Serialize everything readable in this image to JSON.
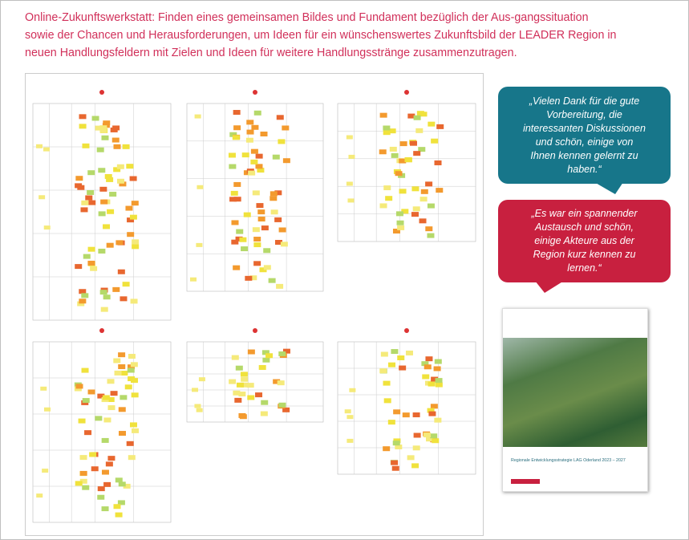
{
  "header": {
    "title_lines": [
      "Online-Zukunftswerkstatt: Finden eines gemeinsamen Bildes und Fundament bezüglich der Aus-gangssituation",
      "sowie der Chancen und Herausforderungen, um Ideen für ein wünschenswertes Zukunftsbild der LEADER Region in",
      "neuen  Handlungsfeldern mit Zielen und Ideen für weitere Handlungsstränge zusammenzutragen."
    ]
  },
  "quotes": [
    {
      "lines": [
        "„Vielen Dank für die gute",
        "Vorbereitung, die",
        "interessanten Diskussionen",
        "und schön, einige von",
        "Ihnen kennen gelernt zu",
        "haben.“"
      ]
    },
    {
      "lines": [
        "„Es war ein spannender",
        "Austausch und schön,",
        "einige Akteure aus der",
        "Region kurz kennen zu",
        "lernen.“"
      ]
    }
  ],
  "brochure": {
    "title": "Regionale Entwicklungsstrategie LAG Oderland 2023 – 2027"
  }
}
